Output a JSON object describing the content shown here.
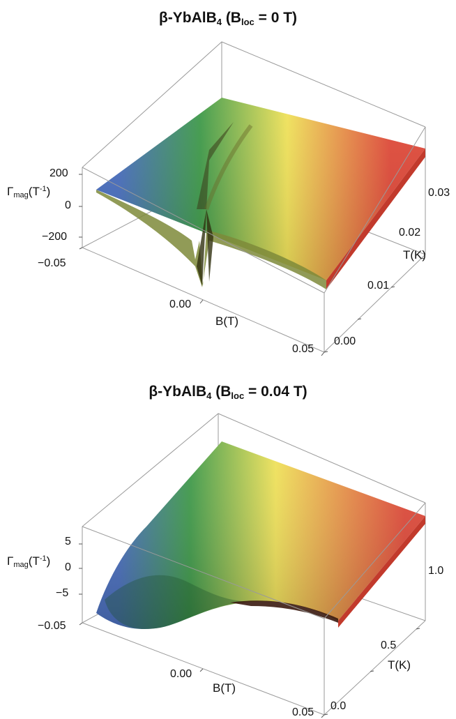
{
  "chart_data": [
    {
      "type": "surface3d",
      "title_main": "β-YbAlB",
      "title_sub": "4",
      "title_paren_open": " (B",
      "title_paren_sub": "loc",
      "title_rest": " = 0 T)",
      "zlabel_main": "Γ",
      "zlabel_sub": "mag",
      "zlabel_unit_open": "(T",
      "zlabel_unit_sup": "-1",
      "zlabel_unit_close": ")",
      "xlabel": "B(T)",
      "ylabel": "T(K)",
      "xlim": [
        -0.05,
        0.05
      ],
      "ylim": [
        0,
        0.033
      ],
      "zlim": [
        -300,
        250
      ],
      "x_ticks": [
        "−0.05",
        "0.00",
        "0.05"
      ],
      "y_ticks": [
        "0.00",
        "0.01",
        "0.02",
        "0.03"
      ],
      "z_ticks": [
        "200",
        "0",
        "−200"
      ],
      "colormap": [
        "#4a6fbf",
        "#3f9a4a",
        "#f0e25a",
        "#e04a3a"
      ],
      "box_color": "#9a9a9a",
      "grid": false
    },
    {
      "type": "surface3d",
      "title_main": "β-YbAlB",
      "title_sub": "4",
      "title_paren_open": " (B",
      "title_paren_sub": "loc",
      "title_rest": " = 0.04 T)",
      "zlabel_main": "Γ",
      "zlabel_sub": "mag",
      "zlabel_unit_open": "(T",
      "zlabel_unit_sup": "-1",
      "zlabel_unit_close": ")",
      "xlabel": "B(T)",
      "ylabel": "T(K)",
      "xlim": [
        -0.05,
        0.05
      ],
      "ylim": [
        0,
        1.1
      ],
      "zlim": [
        -9,
        7
      ],
      "x_ticks": [
        "−0.05",
        "0.00",
        "0.05"
      ],
      "y_ticks": [
        "0.0",
        "0.5",
        "1.0"
      ],
      "z_ticks": [
        "5",
        "0",
        "−5"
      ],
      "colormap": [
        "#4a6fbf",
        "#3f9a4a",
        "#f0e25a",
        "#e04a3a"
      ],
      "box_color": "#9a9a9a",
      "grid": false
    }
  ]
}
